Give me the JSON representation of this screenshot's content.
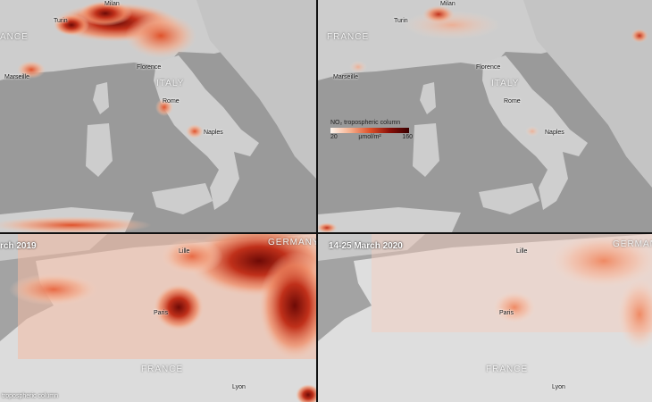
{
  "panels": {
    "italy_2019": {
      "cities": {
        "milan": "Milan",
        "turin": "Turin",
        "florence": "Florence",
        "marseille": "Marseille",
        "rome": "Rome",
        "naples": "Naples"
      },
      "countries": {
        "france": "ANCE",
        "italy": "ITALY"
      }
    },
    "italy_2020": {
      "cities": {
        "milan": "Milan",
        "turin": "Turin",
        "florence": "Florence",
        "marseille": "Marseille",
        "rome": "Rome",
        "naples": "Naples"
      },
      "countries": {
        "france": "FRANCE",
        "italy": "ITALY"
      },
      "legend": {
        "title": "NO₂ tropospheric column",
        "min": "20",
        "unit": "µmol/m²",
        "max": "160"
      }
    },
    "france_2019": {
      "date": "rch 2019",
      "cities": {
        "lille": "Lille",
        "paris": "Paris",
        "lyon": "Lyon"
      },
      "countries": {
        "france": "FRANCE",
        "germany": "GERMANY"
      },
      "legend_partial": "tropospheric column"
    },
    "france_2020": {
      "date": "14-25 March 2020",
      "cities": {
        "lille": "Lille",
        "paris": "Paris",
        "lyon": "Lyon"
      },
      "countries": {
        "france": "FRANCE",
        "germany": "GERMAN"
      }
    }
  },
  "colors": {
    "low": "#fff6ee",
    "mid": "#e0522a",
    "high": "#3a0000",
    "sea": "#9a9a9a",
    "land": "#c9c9c9"
  }
}
